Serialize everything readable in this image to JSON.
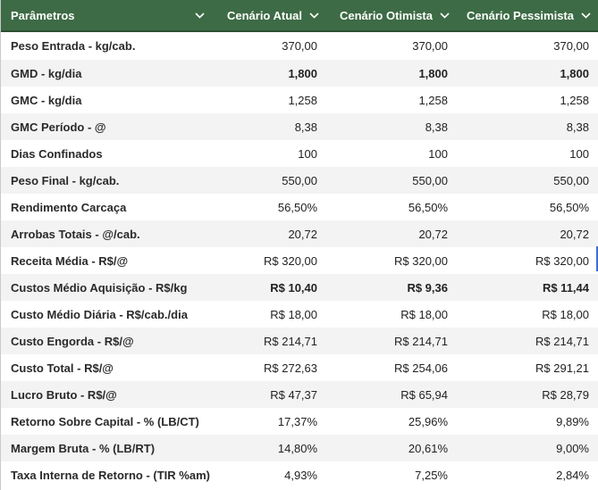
{
  "header": {
    "columns": [
      "Parâmetros",
      "Cenário Atual",
      "Cenário Otimista",
      "Cenário Pessimista"
    ]
  },
  "rows": [
    {
      "label": "Peso Entrada - kg/cab.",
      "atual": "370,00",
      "otimista": "370,00",
      "pessimista": "370,00",
      "bold": false
    },
    {
      "label": "GMD - kg/dia",
      "atual": "1,800",
      "otimista": "1,800",
      "pessimista": "1,800",
      "bold": true
    },
    {
      "label": "GMC - kg/dia",
      "atual": "1,258",
      "otimista": "1,258",
      "pessimista": "1,258",
      "bold": false
    },
    {
      "label": "GMC Período - @",
      "atual": "8,38",
      "otimista": "8,38",
      "pessimista": "8,38",
      "bold": false
    },
    {
      "label": "Dias Confinados",
      "atual": "100",
      "otimista": "100",
      "pessimista": "100",
      "bold": false
    },
    {
      "label": "Peso Final - kg/cab.",
      "atual": "550,00",
      "otimista": "550,00",
      "pessimista": "550,00",
      "bold": false
    },
    {
      "label": "Rendimento Carcaça",
      "atual": "56,50%",
      "otimista": "56,50%",
      "pessimista": "56,50%",
      "bold": false
    },
    {
      "label": "Arrobas Totais - @/cab.",
      "atual": "20,72",
      "otimista": "20,72",
      "pessimista": "20,72",
      "bold": false
    },
    {
      "label": "Receita Média - R$/@",
      "atual": "R$ 320,00",
      "otimista": "R$ 320,00",
      "pessimista": "R$ 320,00",
      "bold": false
    },
    {
      "label": "Custos Médio Aquisição - R$/kg",
      "atual": "R$ 10,40",
      "otimista": "R$ 9,36",
      "pessimista": "R$ 11,44",
      "bold": true
    },
    {
      "label": "Custo Médio Diária - R$/cab./dia",
      "atual": "R$ 18,00",
      "otimista": "R$ 18,00",
      "pessimista": "R$ 18,00",
      "bold": false
    },
    {
      "label": "Custo Engorda - R$/@",
      "atual": "R$ 214,71",
      "otimista": "R$ 214,71",
      "pessimista": "R$ 214,71",
      "bold": false
    },
    {
      "label": "Custo Total - R$/@",
      "atual": "R$ 272,63",
      "otimista": "R$ 254,06",
      "pessimista": "R$ 291,21",
      "bold": false
    },
    {
      "label": "Lucro Bruto - R$/@",
      "atual": "R$ 47,37",
      "otimista": "R$ 65,94",
      "pessimista": "R$ 28,79",
      "bold": false
    },
    {
      "label": "Retorno Sobre Capital - % (LB/CT)",
      "atual": "17,37%",
      "otimista": "25,96%",
      "pessimista": "9,89%",
      "bold": false
    },
    {
      "label": "Margem Bruta - % (LB/RT)",
      "atual": "14,80%",
      "otimista": "20,61%",
      "pessimista": "9,00%",
      "bold": false
    },
    {
      "label": "Taxa Interna de Retorno - (TIR %am)",
      "atual": "4,93%",
      "otimista": "7,25%",
      "pessimista": "2,84%",
      "bold": false
    }
  ],
  "colors": {
    "header_bg": "#3d6b45",
    "header_text": "#ffffff",
    "stripe": "#f3f3f3",
    "selection_edge": "#3b6fd1"
  }
}
